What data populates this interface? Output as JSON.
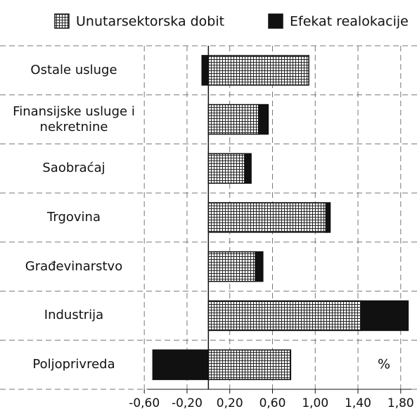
{
  "chart_data": {
    "type": "bar",
    "orientation": "horizontal",
    "stacked": true,
    "categories": [
      "Ostale usluge",
      "Finansijske usluge i nekretnine",
      "Saobraćaj",
      "Trgovina",
      "Građevinarstvo",
      "Industrija",
      "Poljoprivreda"
    ],
    "series": [
      {
        "name": "Unutarsektorska dobit",
        "color": "#ffffff",
        "pattern": "grid",
        "values": [
          0.94,
          0.47,
          0.34,
          1.1,
          0.44,
          1.43,
          0.77
        ]
      },
      {
        "name": "Efekat realokacije",
        "color": "#111111",
        "values": [
          -0.06,
          0.09,
          0.06,
          0.04,
          0.07,
          0.44,
          -0.52
        ]
      }
    ],
    "xlim": [
      -0.7,
      1.9
    ],
    "xticks": [
      {
        "value": -0.6,
        "label": "-0,60"
      },
      {
        "value": -0.2,
        "label": "-0,20"
      },
      {
        "value": 0.2,
        "label": "0,20"
      },
      {
        "value": 0.6,
        "label": "0,60"
      },
      {
        "value": 1.0,
        "label": "1,00"
      },
      {
        "value": 1.4,
        "label": "1,40"
      },
      {
        "value": 1.8,
        "label": "1,80"
      }
    ],
    "annotation": "%",
    "grid": true,
    "legend": "top"
  }
}
